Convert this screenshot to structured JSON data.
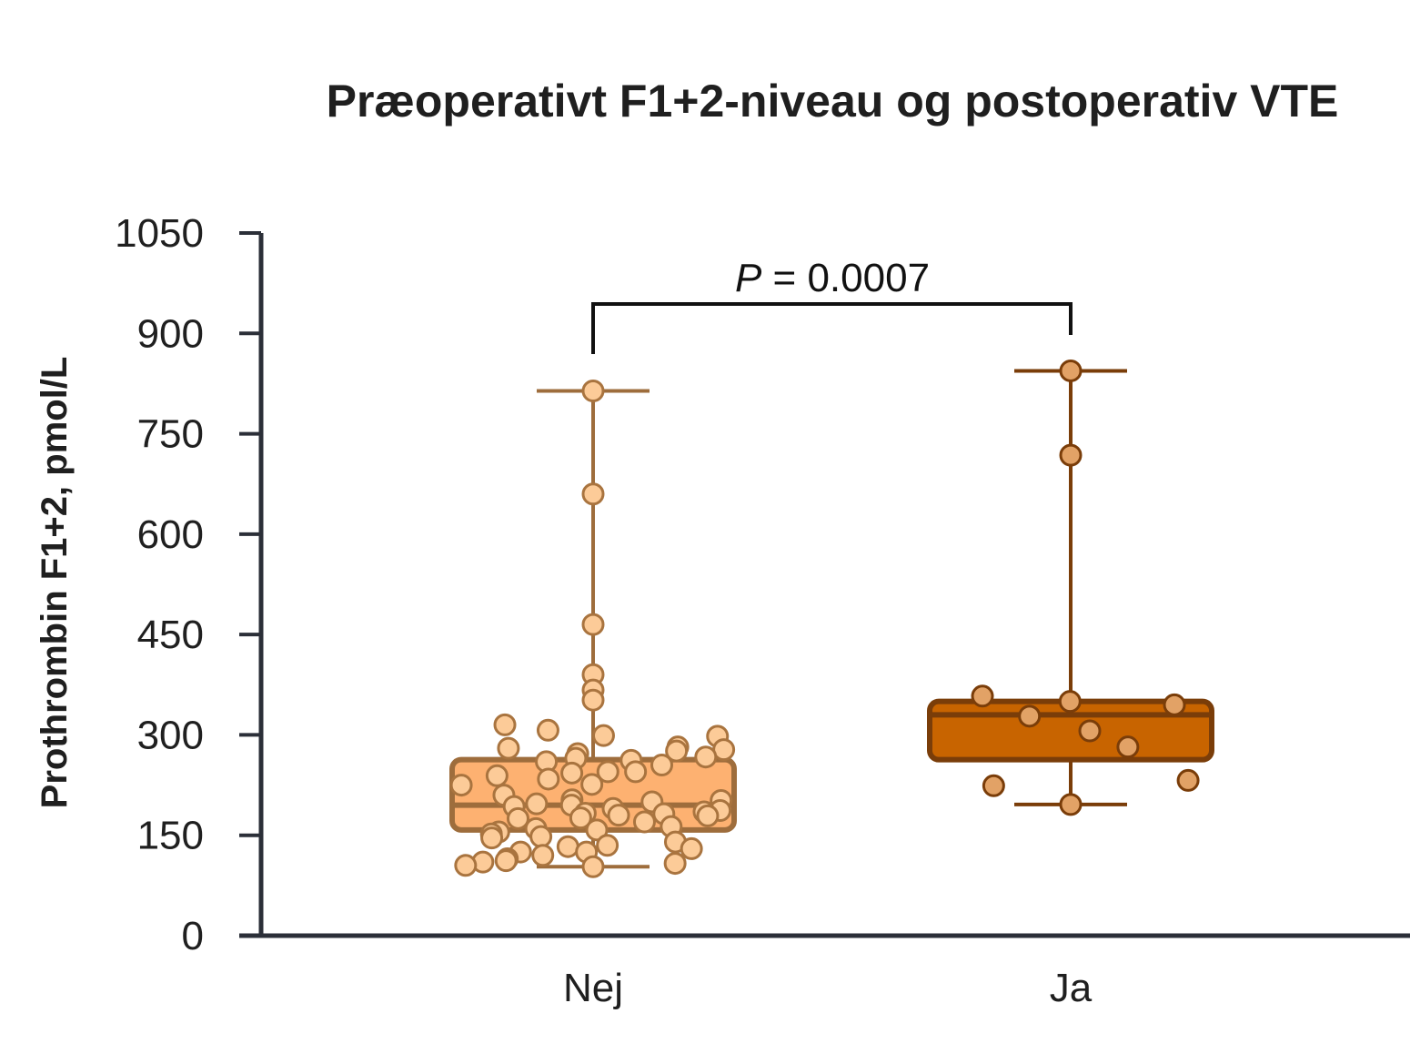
{
  "chart_data": {
    "type": "box",
    "title": "Præoperativt F1+2-niveau og postoperativ VTE",
    "ylabel": "Prothrombin F1+2, pmol/L",
    "xlabel": "",
    "ylim": [
      0,
      1050
    ],
    "yticks": [
      0,
      150,
      300,
      450,
      600,
      750,
      900,
      1050
    ],
    "categories": [
      "Nej",
      "Ja"
    ],
    "groups": [
      {
        "category": "Nej",
        "fill_color": "#FDB171",
        "edge_color": "#9E6D3C",
        "point_fill": "#FCCB98",
        "point_edge": "#A9743F",
        "whisker_low": 103,
        "q1": 158,
        "median": 195,
        "q3": 263,
        "whisker_high": 814,
        "points": [
          814,
          660,
          465,
          390,
          367,
          352,
          315,
          307,
          299,
          298,
          282,
          280,
          278,
          276,
          272,
          267,
          265,
          262,
          260,
          255,
          245,
          245,
          243,
          239,
          234,
          226,
          225,
          210,
          203,
          202,
          200,
          197,
          195,
          193,
          190,
          187,
          185,
          183,
          182,
          180,
          179,
          176,
          175,
          170,
          163,
          160,
          158,
          155,
          152,
          148,
          146,
          140,
          135,
          133,
          130,
          125,
          125,
          120,
          115,
          112,
          110,
          108,
          105,
          103
        ]
      },
      {
        "category": "Ja",
        "fill_color": "#C86400",
        "edge_color": "#7A3D09",
        "point_fill": "#E2A266",
        "point_edge": "#7A3D09",
        "whisker_low": 196,
        "q1": 263,
        "median": 330,
        "q3": 350,
        "whisker_high": 844,
        "points": [
          844,
          718,
          358,
          350,
          345,
          328,
          306,
          282,
          232,
          224,
          196
        ]
      }
    ],
    "comparison": {
      "groups": [
        "Nej",
        "Ja"
      ],
      "p_symbol": "P",
      "p_text": " = 0.0007"
    },
    "grid": false,
    "legend": "none"
  }
}
